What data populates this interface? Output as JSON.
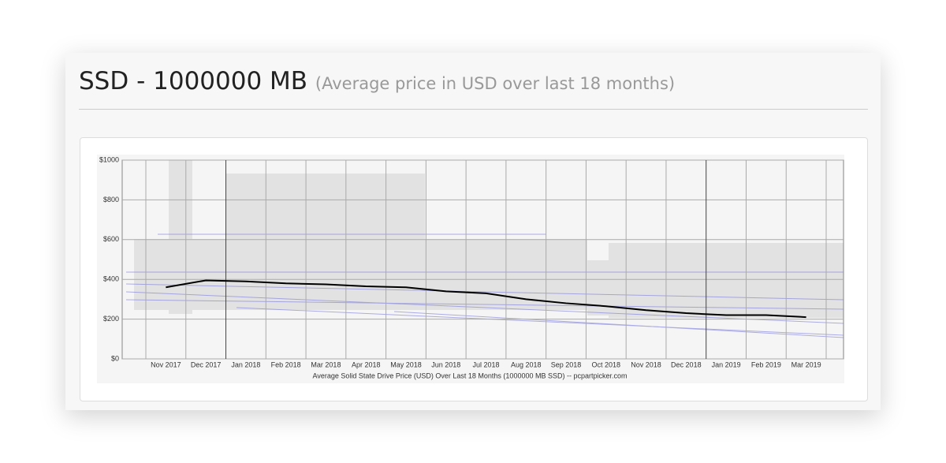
{
  "chart_data": {
    "type": "line",
    "title": "SSD - 1000000 MB",
    "subtitle": "(Average price in USD over last 18 months)",
    "x_label": "Average Solid State Drive Price (USD) Over Last 18 Months (1000000 MB SSD) -- pcpartpicker.com",
    "categories": [
      "Nov 2017",
      "Dec 2017",
      "Jan 2018",
      "Feb 2018",
      "Mar 2018",
      "Apr 2018",
      "May 2018",
      "Jun 2018",
      "Jul 2018",
      "Aug 2018",
      "Sep 2018",
      "Oct 2018",
      "Nov 2018",
      "Dec 2018",
      "Jan 2019",
      "Feb 2019",
      "Mar 2019"
    ],
    "series": [
      {
        "name": "Average price",
        "color": "#000000",
        "values": [
          360,
          395,
          390,
          380,
          375,
          365,
          360,
          340,
          330,
          300,
          280,
          265,
          245,
          230,
          220,
          220,
          210
        ]
      }
    ],
    "ylim": [
      0,
      1000
    ],
    "yticks": [
      {
        "value": 0,
        "label": "$0"
      },
      {
        "value": 200,
        "label": "$200"
      },
      {
        "value": 400,
        "label": "$400"
      },
      {
        "value": 600,
        "label": "$600"
      },
      {
        "value": 800,
        "label": "$800"
      },
      {
        "value": 1000,
        "label": "$1000"
      }
    ],
    "grid": true
  }
}
